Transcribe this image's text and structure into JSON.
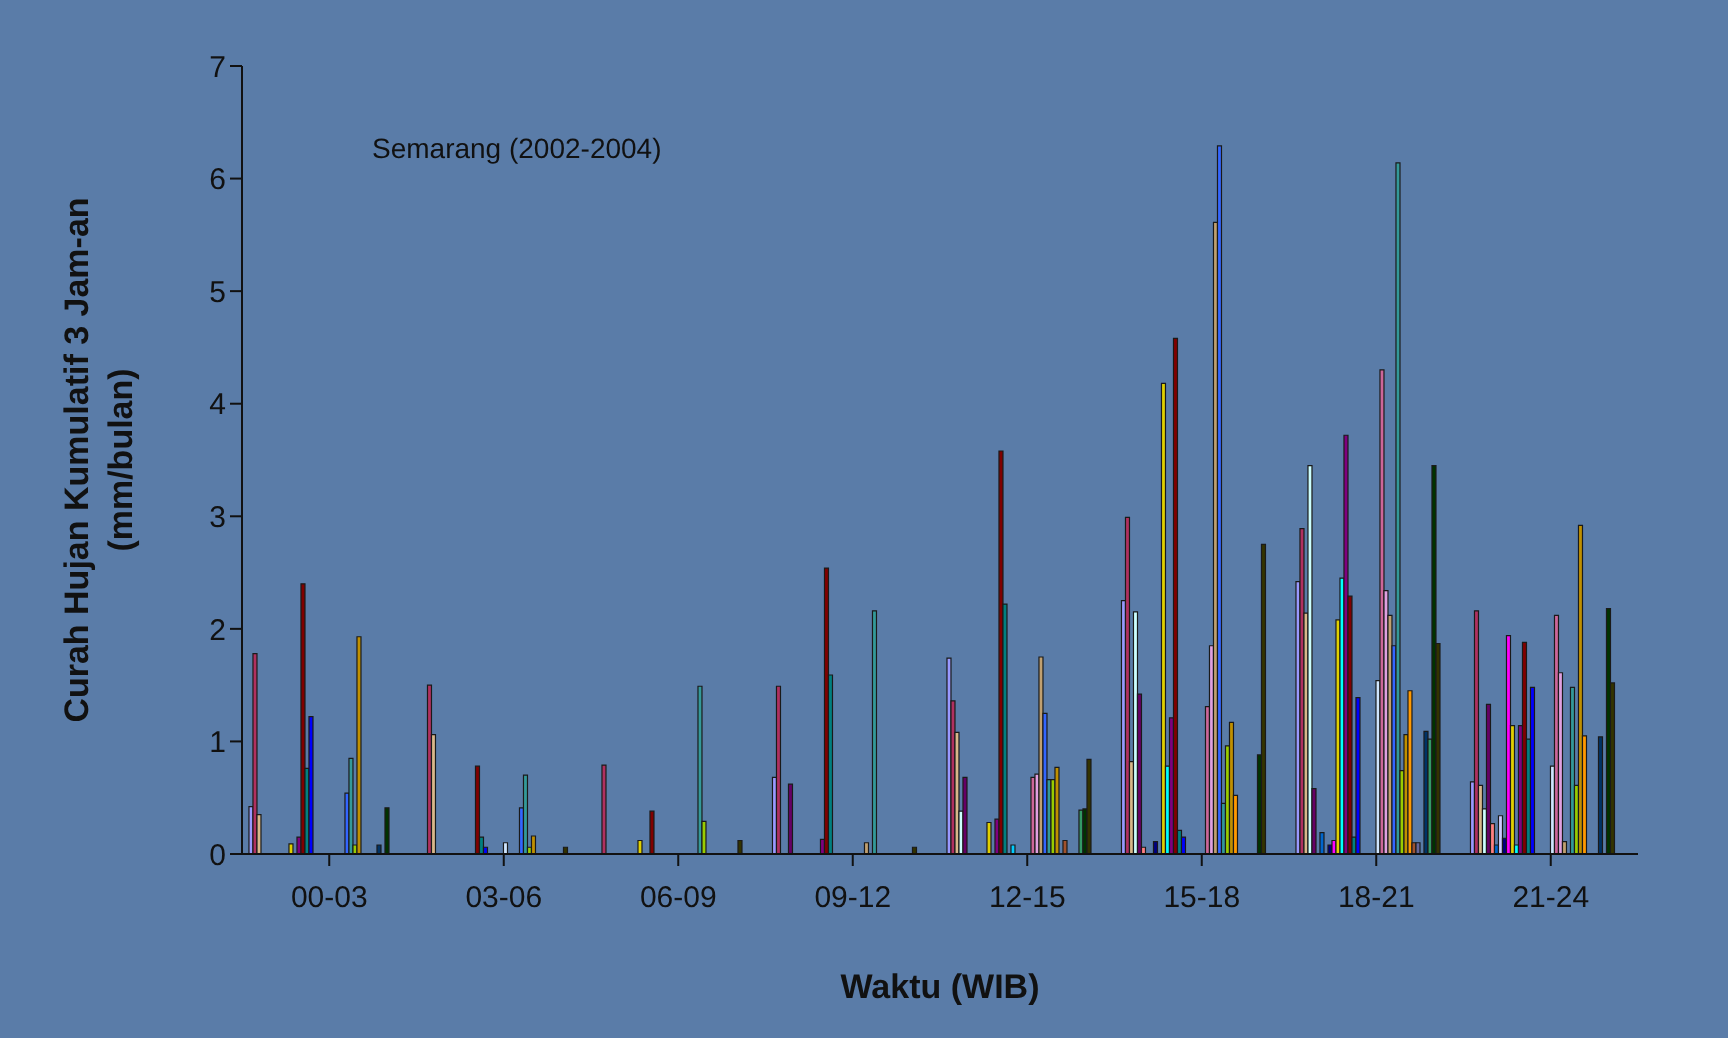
{
  "chart_data": {
    "type": "bar",
    "title": "Semarang (2002-2004)",
    "xlabel": "Waktu (WIB)",
    "ylabel": "Curah Hujan Kumulatif 3 Jam-an\n(mm/bulan)",
    "categories": [
      "00-03",
      "03-06",
      "06-09",
      "09-12",
      "12-15",
      "15-18",
      "18-21",
      "21-24"
    ],
    "ylim": [
      0,
      7
    ],
    "yticks": [
      0,
      1,
      2,
      3,
      4,
      5,
      6,
      7
    ],
    "grid": false,
    "legend": false,
    "series": [
      {
        "color": "#9999ff",
        "values": [
          0.42,
          null,
          null,
          0.68,
          1.74,
          2.25,
          2.42,
          0.64
        ]
      },
      {
        "color": "#b03060",
        "values": [
          1.78,
          1.5,
          0.79,
          1.49,
          1.36,
          2.99,
          2.89,
          2.16
        ]
      },
      {
        "color": "#d8b88a",
        "values": [
          0.35,
          1.06,
          null,
          null,
          1.08,
          0.82,
          2.14,
          0.61
        ]
      },
      {
        "color": "#ccffff",
        "values": [
          null,
          null,
          null,
          null,
          0.38,
          2.15,
          3.45,
          0.4
        ]
      },
      {
        "color": "#660066",
        "values": [
          null,
          null,
          null,
          0.62,
          0.68,
          1.42,
          0.58,
          1.33
        ]
      },
      {
        "color": "#ff8080",
        "values": [
          null,
          null,
          null,
          null,
          null,
          0.06,
          null,
          0.27
        ]
      },
      {
        "color": "#0066cc",
        "values": [
          null,
          null,
          null,
          null,
          null,
          null,
          0.19,
          0.08
        ]
      },
      {
        "color": "#ccccff",
        "values": [
          null,
          null,
          null,
          null,
          null,
          null,
          null,
          0.34
        ]
      },
      {
        "color": "#000080",
        "values": [
          null,
          null,
          null,
          null,
          null,
          0.11,
          0.08,
          0.14
        ]
      },
      {
        "color": "#ff00ff",
        "values": [
          null,
          null,
          null,
          null,
          null,
          null,
          0.12,
          1.94
        ]
      },
      {
        "color": "#e0d000",
        "values": [
          0.09,
          null,
          0.12,
          null,
          0.28,
          4.18,
          2.08,
          1.14
        ]
      },
      {
        "color": "#00ffff",
        "values": [
          null,
          null,
          null,
          null,
          null,
          0.78,
          2.45,
          0.08
        ]
      },
      {
        "color": "#800080",
        "values": [
          0.15,
          null,
          null,
          0.13,
          0.31,
          1.21,
          3.72,
          1.14
        ]
      },
      {
        "color": "#800000",
        "values": [
          2.4,
          0.78,
          0.38,
          2.54,
          3.58,
          4.58,
          2.29,
          1.88
        ]
      },
      {
        "color": "#008080",
        "values": [
          0.76,
          0.15,
          null,
          1.59,
          2.22,
          0.21,
          0.15,
          1.02
        ]
      },
      {
        "color": "#0000ff",
        "values": [
          1.22,
          0.06,
          null,
          null,
          null,
          0.15,
          1.39,
          1.48
        ]
      },
      {
        "color": "#00ccff",
        "values": [
          null,
          null,
          null,
          null,
          0.08,
          null,
          null,
          null
        ]
      },
      {
        "color": "#ccffcc",
        "values": [
          null,
          null,
          null,
          null,
          null,
          null,
          null,
          null
        ]
      },
      {
        "color": "#ffff99",
        "values": [
          null,
          null,
          null,
          null,
          null,
          null,
          null,
          null
        ]
      },
      {
        "color": "#99ccff",
        "values": [
          null,
          null,
          null,
          null,
          null,
          null,
          null,
          null
        ]
      },
      {
        "color": "#cfe6ff",
        "values": [
          null,
          0.1,
          null,
          null,
          null,
          null,
          1.54,
          0.78
        ]
      },
      {
        "color": "#cc6699",
        "values": [
          null,
          null,
          null,
          null,
          0.68,
          1.31,
          4.3,
          2.12
        ]
      },
      {
        "color": "#e0a0e0",
        "values": [
          null,
          null,
          null,
          null,
          0.71,
          1.85,
          2.34,
          1.61
        ]
      },
      {
        "color": "#c0a070",
        "values": [
          null,
          null,
          null,
          0.1,
          1.75,
          5.61,
          2.12,
          0.11
        ]
      },
      {
        "color": "#3366ff",
        "values": [
          0.54,
          0.41,
          null,
          null,
          1.25,
          6.29,
          1.85,
          null
        ]
      },
      {
        "color": "#339999",
        "values": [
          0.85,
          0.7,
          1.49,
          2.16,
          0.66,
          0.45,
          6.14,
          1.48
        ]
      },
      {
        "color": "#99cc00",
        "values": [
          0.08,
          0.06,
          0.29,
          null,
          0.66,
          0.96,
          0.74,
          0.61
        ]
      },
      {
        "color": "#c09000",
        "values": [
          1.93,
          0.16,
          null,
          null,
          0.77,
          1.17,
          1.06,
          2.92
        ]
      },
      {
        "color": "#ff9900",
        "values": [
          null,
          null,
          null,
          null,
          null,
          0.52,
          1.45,
          1.05
        ]
      },
      {
        "color": "#a0522d",
        "values": [
          null,
          null,
          null,
          null,
          0.12,
          null,
          0.1,
          null
        ]
      },
      {
        "color": "#666699",
        "values": [
          null,
          null,
          null,
          null,
          null,
          null,
          0.1,
          null
        ]
      },
      {
        "color": "#969696",
        "values": [
          null,
          null,
          null,
          null,
          null,
          null,
          null,
          null
        ]
      },
      {
        "color": "#003366",
        "values": [
          0.08,
          null,
          null,
          null,
          null,
          null,
          1.09,
          1.04
        ]
      },
      {
        "color": "#339966",
        "values": [
          null,
          null,
          null,
          null,
          0.39,
          null,
          1.02,
          null
        ]
      },
      {
        "color": "#003300",
        "values": [
          0.41,
          null,
          null,
          null,
          0.4,
          0.88,
          3.45,
          2.18
        ]
      },
      {
        "color": "#333300",
        "values": [
          null,
          0.06,
          0.12,
          0.06,
          0.84,
          2.75,
          1.87,
          1.52
        ]
      }
    ]
  }
}
